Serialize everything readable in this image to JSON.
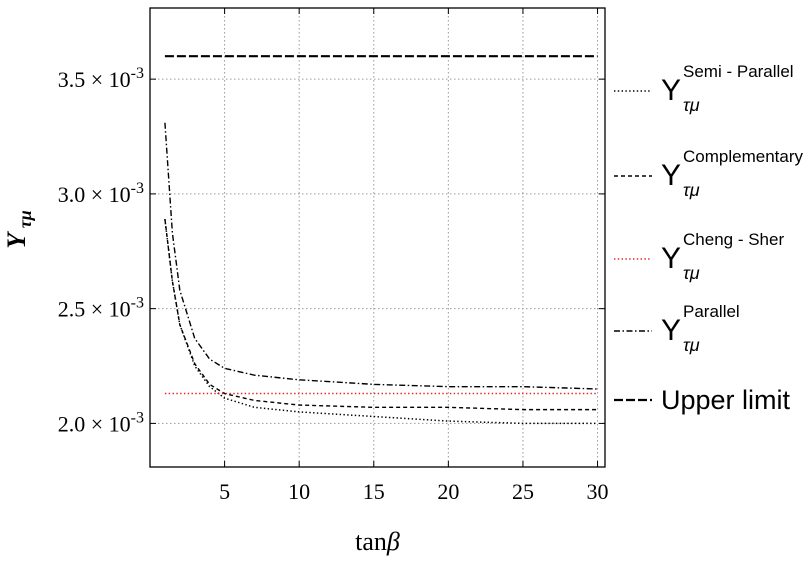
{
  "chart_data": {
    "type": "line",
    "title": "",
    "xlabel": "tanβ",
    "ylabel": "Y τμ",
    "xlim": [
      0,
      30.5
    ],
    "ylim": [
      0.00181,
      0.00381
    ],
    "x_ticks": [
      5,
      10,
      15,
      20,
      25,
      30
    ],
    "x_tick_labels": [
      "5",
      "10",
      "15",
      "20",
      "25",
      "30"
    ],
    "y_ticks": [
      0.002,
      0.0025,
      0.003,
      0.0035
    ],
    "y_tick_mantissas": [
      "2.0",
      "2.5",
      "3.0",
      "3.5"
    ],
    "y_tick_multiplier": "× 10",
    "y_tick_exponent": "-3",
    "grid": true,
    "legend_position": "right",
    "series": [
      {
        "name": "Semi - Parallel",
        "name_base": "Y",
        "name_sub": "τμ",
        "name_sup": "Semi - Parallel",
        "style": "dotted",
        "color": "#000000",
        "points": [
          [
            1,
            0.00289
          ],
          [
            1.5,
            0.00262
          ],
          [
            2,
            0.00243
          ],
          [
            3,
            0.00225
          ],
          [
            4,
            0.00216
          ],
          [
            5,
            0.00211
          ],
          [
            7,
            0.00207
          ],
          [
            10,
            0.00205
          ],
          [
            15,
            0.00203
          ],
          [
            20,
            0.00201
          ],
          [
            25,
            0.002
          ],
          [
            30,
            0.002
          ]
        ]
      },
      {
        "name": "Complementary",
        "name_base": "Y",
        "name_sub": "τμ",
        "name_sup": "Complementary",
        "style": "dashed",
        "color": "#000000",
        "points": [
          [
            1,
            0.00289
          ],
          [
            1.5,
            0.00262
          ],
          [
            2,
            0.00243
          ],
          [
            3,
            0.00226
          ],
          [
            4,
            0.00217
          ],
          [
            5,
            0.00213
          ],
          [
            7,
            0.0021
          ],
          [
            10,
            0.00208
          ],
          [
            15,
            0.00207
          ],
          [
            20,
            0.00207
          ],
          [
            25,
            0.00206
          ],
          [
            30,
            0.00206
          ]
        ]
      },
      {
        "name": "Cheng - Sher",
        "name_base": "Y",
        "name_sub": "τμ",
        "name_sup": "Cheng - Sher",
        "style": "dotted",
        "color": "#e8201e",
        "points": [
          [
            1,
            0.00213
          ],
          [
            30,
            0.00213
          ]
        ]
      },
      {
        "name": "Parallel",
        "name_base": "Y",
        "name_sub": "τμ",
        "name_sup": "Parallel",
        "style": "dashdot",
        "color": "#000000",
        "points": [
          [
            1,
            0.00331
          ],
          [
            1.5,
            0.00283
          ],
          [
            2,
            0.00258
          ],
          [
            3,
            0.00237
          ],
          [
            4,
            0.00228
          ],
          [
            5,
            0.00224
          ],
          [
            7,
            0.00221
          ],
          [
            10,
            0.00219
          ],
          [
            15,
            0.00217
          ],
          [
            20,
            0.00216
          ],
          [
            25,
            0.00216
          ],
          [
            30,
            0.00215
          ]
        ]
      },
      {
        "name": "Upper limit",
        "name_base": "Upper limit",
        "style": "longdash",
        "color": "#000000",
        "points": [
          [
            1,
            0.0036
          ],
          [
            30,
            0.0036
          ]
        ]
      }
    ]
  }
}
